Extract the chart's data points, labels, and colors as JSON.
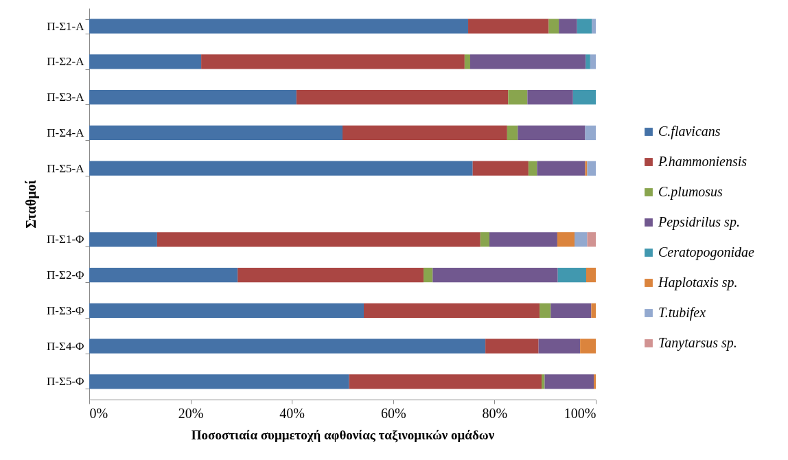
{
  "chart_data": {
    "type": "bar",
    "orientation": "horizontal",
    "stacked": true,
    "xlabel": "Ποσοστιαία συμμετοχή αφθονίας ταξινομικών ομάδων",
    "ylabel": "Σταθμοί",
    "categories": [
      "Π-Σ1-Α",
      "Π-Σ2-Α",
      "Π-Σ3-Α",
      "Π-Σ4-Α",
      "Π-Σ5-Α",
      null,
      "Π-Σ1-Φ",
      "Π-Σ2-Φ",
      "Π-Σ3-Φ",
      "Π-Σ4-Φ",
      "Π-Σ5-Φ"
    ],
    "series": [
      {
        "name": "C.flavicans",
        "color": "#4572a7",
        "values": [
          74.8,
          22.1,
          40.9,
          50.0,
          75.7,
          null,
          13.4,
          29.3,
          54.2,
          78.2,
          51.3
        ]
      },
      {
        "name": "P.hammoniensis",
        "color": "#aa4643",
        "values": [
          15.9,
          52.0,
          41.8,
          32.5,
          11.0,
          null,
          63.8,
          36.7,
          34.7,
          10.5,
          38.0
        ]
      },
      {
        "name": "C.plumosus",
        "color": "#89a54e",
        "values": [
          2.0,
          1.1,
          3.8,
          2.1,
          1.7,
          null,
          1.8,
          1.8,
          2.2,
          0,
          0.6
        ]
      },
      {
        "name": "Pepsidrilus sp.",
        "color": "#71588f",
        "values": [
          3.6,
          22.8,
          9.0,
          13.3,
          9.5,
          null,
          13.4,
          24.7,
          8.0,
          8.2,
          9.7
        ]
      },
      {
        "name": "Ceratopogonidae",
        "color": "#4198af",
        "values": [
          2.9,
          0.9,
          4.5,
          0,
          0,
          null,
          0,
          5.6,
          0,
          0,
          0
        ]
      },
      {
        "name": "Haplotaxis sp.",
        "color": "#db843d",
        "values": [
          0,
          0,
          0,
          0,
          0.4,
          null,
          3.4,
          1.9,
          0.9,
          3.1,
          0.4
        ]
      },
      {
        "name": "T.tubifex",
        "color": "#93a9cf",
        "values": [
          0.8,
          1.1,
          0,
          2.1,
          1.7,
          null,
          2.5,
          0,
          0,
          0,
          0
        ]
      },
      {
        "name": "Tanytarsus sp.",
        "color": "#d19392",
        "values": [
          0,
          0,
          0,
          0,
          0,
          null,
          1.7,
          0,
          0,
          0,
          0
        ]
      }
    ],
    "xlim": [
      0,
      100
    ],
    "xticks": [
      {
        "value": 0,
        "label": "0%"
      },
      {
        "value": 20,
        "label": "20%"
      },
      {
        "value": 40,
        "label": "40%"
      },
      {
        "value": 60,
        "label": "60%"
      },
      {
        "value": 80,
        "label": "80%"
      },
      {
        "value": 100,
        "label": "100%"
      }
    ],
    "grid": false,
    "legend": "right"
  }
}
